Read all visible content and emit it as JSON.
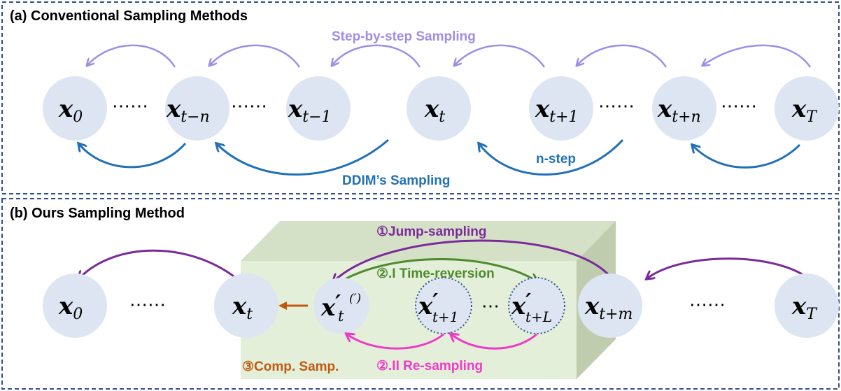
{
  "panel_a": {
    "title": "(a) Conventional Sampling Methods",
    "step_label": "Step-by-step Sampling",
    "ddim_label": "DDIM’s Sampling",
    "nstep_label": "n-step",
    "nodes": [
      {
        "var": "x",
        "sub": "0"
      },
      {
        "var": "x",
        "sub": "t−n"
      },
      {
        "var": "x",
        "sub": "t−1"
      },
      {
        "var": "x",
        "sub": "t"
      },
      {
        "var": "x",
        "sub": "t+1"
      },
      {
        "var": "x",
        "sub": "t+n"
      },
      {
        "var": "x",
        "sub": "T"
      }
    ],
    "ellipsis": "⋯⋯"
  },
  "panel_b": {
    "title": "(b) Ours Sampling Method",
    "jump_label": "①Jump-sampling",
    "time_reversion_label": "②.I Time-reversion",
    "resampling_label": "②.II Re-sampling",
    "comp_label": "③Comp. Samp.",
    "nodes": [
      {
        "var": "x",
        "sub": "0"
      },
      {
        "var": "x",
        "sub": "t"
      },
      {
        "var": "x",
        "sub": "t",
        "prime": "′",
        "sup": "(′)"
      },
      {
        "var": "x",
        "sub": "t+1",
        "prime": "′"
      },
      {
        "var": "x",
        "sub": "t+L",
        "prime": "′"
      },
      {
        "var": "x",
        "sub": "t+m"
      },
      {
        "var": "x",
        "sub": "T"
      }
    ],
    "ellipsis": "⋯⋯",
    "mid_ellipsis": "⋯"
  },
  "colors": {
    "frame": "#2f4f8f",
    "light_purple": "#9d8fe8",
    "blue": "#2270b8",
    "purple": "#7a2a9a",
    "green": "#4e8a2e",
    "magenta": "#ee3bc8",
    "orange": "#c05a12",
    "node_fill": "#dde5f2",
    "box_front": "#e4efd9",
    "box_side": "#bfccad",
    "box_top": "#d5e1c7"
  }
}
